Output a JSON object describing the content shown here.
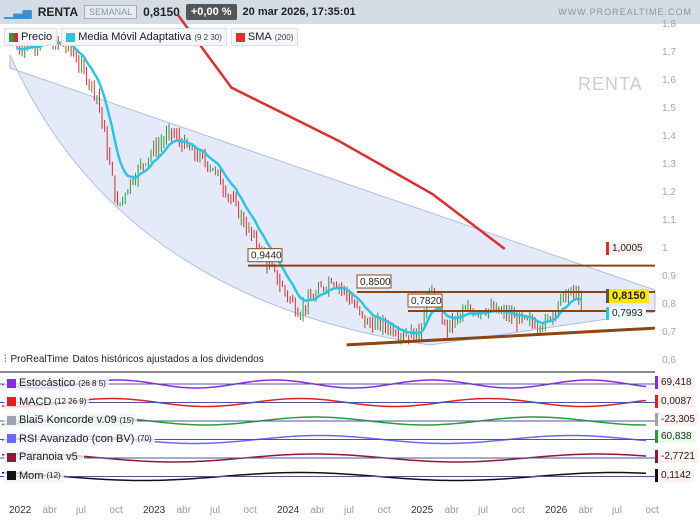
{
  "header": {
    "symbol": "RENTA",
    "timeframe": "SEMANAL",
    "price": "0,8150",
    "change": "+0,00 %",
    "datetime": "20 mar 2026, 17:35:01",
    "brand": "WWW.PROREALTIME.COM"
  },
  "legend": [
    {
      "label": "Precio",
      "params": "",
      "color": "#2a9d3a"
    },
    {
      "label": "Media Móvil Adaptativa",
      "params": "(9 2 30)",
      "color": "#2ec4e0"
    },
    {
      "label": "SMA",
      "params": "(200)",
      "color": "#e03030"
    }
  ],
  "watermark": "RENTA",
  "source_note": {
    "brand": "ProRealTime",
    "text": "Datos históricos ajustados a los dividendos"
  },
  "y_axis": [
    "1,8",
    "1,7",
    "1,6",
    "1,5",
    "1,4",
    "1,3",
    "1,2",
    "1,1",
    "1",
    "0,9",
    "0,8",
    "0,7",
    "0,6"
  ],
  "x_axis": [
    "2022",
    "abr",
    "jul",
    "oct",
    "2023",
    "abr",
    "jul",
    "oct",
    "2024",
    "abr",
    "jul",
    "oct",
    "2025",
    "abr",
    "jul",
    "oct",
    "2026",
    "abr",
    "jul",
    "oct"
  ],
  "levels": [
    {
      "label": "0,9440",
      "value": 0.944
    },
    {
      "label": "0,8500",
      "value": 0.85
    },
    {
      "label": "0,7820",
      "value": 0.782
    }
  ],
  "value_tags": {
    "sma": "1,0005",
    "price": "0,8150",
    "ama": "0,7993"
  },
  "indicators": [
    {
      "label": "Estocástico",
      "params": "(26 8 5)",
      "value": "69,418",
      "color": "#8a2be2"
    },
    {
      "label": "MACD",
      "params": "(12 26 9)",
      "value": "0,0087",
      "color": "#e02020"
    },
    {
      "label": "Blai5 Koncorde v.09",
      "params": "(15)",
      "value": "-23,305",
      "value2": "60,838",
      "color": "#9aa4b0"
    },
    {
      "label": "RSI Avanzado (con BV)",
      "params": "(70)",
      "value": "",
      "color": "#6a6af0"
    },
    {
      "label": "Paranoia v5",
      "params": "",
      "value": "-2,7721",
      "color": "#8b1a3a"
    },
    {
      "label": "Mom",
      "params": "(12)",
      "value": "0,1142",
      "color": "#111"
    }
  ],
  "colors": {
    "up": "#2a9d3a",
    "down": "#d03030",
    "ama": "#2ec4e0",
    "sma": "#d83030",
    "levels": "#8b4513",
    "wedge": "#dfe6fa"
  },
  "chart_data": {
    "type": "line",
    "price_keypoints": [
      [
        2022.0,
        1.72
      ],
      [
        2022.2,
        1.75
      ],
      [
        2022.4,
        1.72
      ],
      [
        2022.6,
        1.55
      ],
      [
        2022.75,
        1.15
      ],
      [
        2022.85,
        1.25
      ],
      [
        2023.0,
        1.35
      ],
      [
        2023.15,
        1.42
      ],
      [
        2023.3,
        1.35
      ],
      [
        2023.45,
        1.3
      ],
      [
        2023.6,
        1.18
      ],
      [
        2023.75,
        1.05
      ],
      [
        2023.9,
        0.93
      ],
      [
        2024.0,
        0.85
      ],
      [
        2024.1,
        0.78
      ],
      [
        2024.25,
        0.85
      ],
      [
        2024.35,
        0.9
      ],
      [
        2024.45,
        0.85
      ],
      [
        2024.6,
        0.74
      ],
      [
        2024.75,
        0.73
      ],
      [
        2024.9,
        0.7
      ],
      [
        2025.0,
        0.7
      ],
      [
        2025.05,
        0.82
      ],
      [
        2025.1,
        0.85
      ],
      [
        2025.2,
        0.72
      ],
      [
        2025.35,
        0.78
      ],
      [
        2025.5,
        0.79
      ],
      [
        2025.65,
        0.77
      ],
      [
        2025.8,
        0.74
      ],
      [
        2025.95,
        0.74
      ],
      [
        2026.05,
        0.82
      ],
      [
        2026.15,
        0.85
      ],
      [
        2026.22,
        0.815
      ]
    ],
    "sma_keypoints": [
      [
        2023.2,
        1.84
      ],
      [
        2023.6,
        1.58
      ],
      [
        2024.4,
        1.39
      ],
      [
        2025.1,
        1.2
      ],
      [
        2025.65,
        1.0
      ]
    ],
    "support_line": [
      [
        2024.46,
        0.661
      ],
      [
        2026.76,
        0.721
      ]
    ],
    "ylim": [
      0.6,
      1.85
    ]
  }
}
